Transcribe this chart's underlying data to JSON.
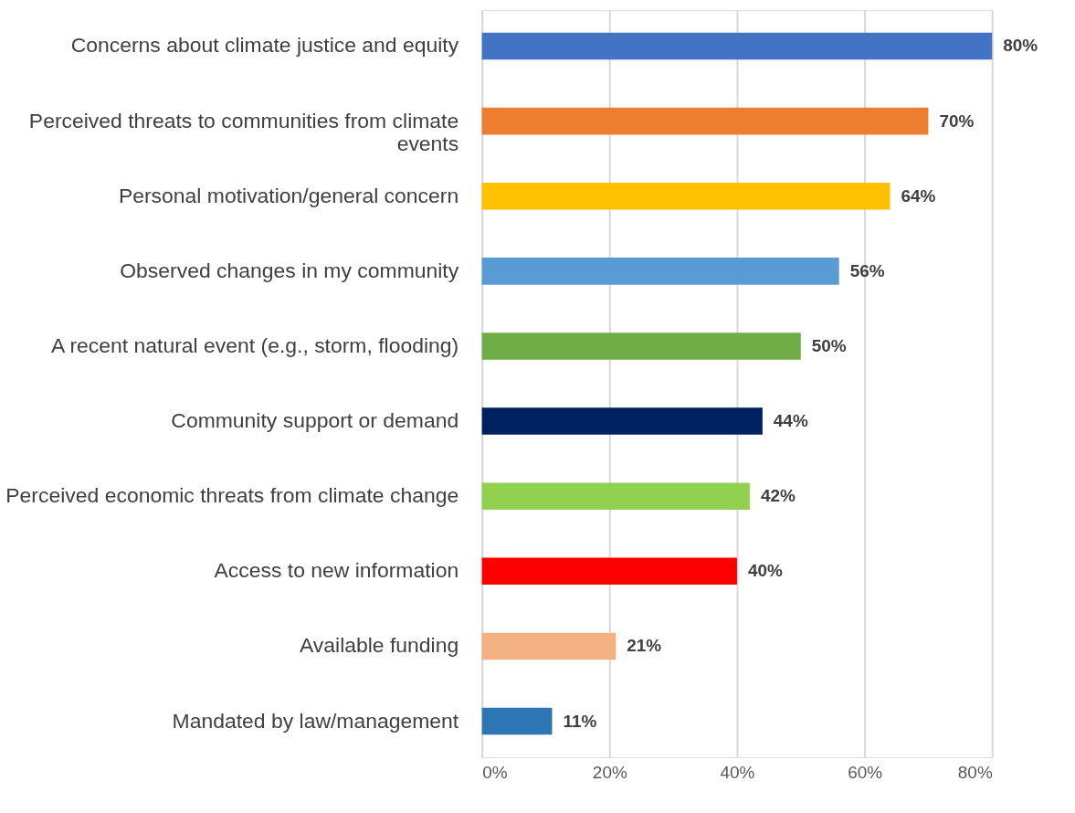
{
  "chart_data": {
    "type": "bar",
    "orientation": "horizontal",
    "categories": [
      "Concerns about climate justice and equity",
      "Perceived threats to communities from climate events",
      "Personal motivation/general concern",
      "Observed changes in my community",
      "A recent natural event (e.g., storm, flooding)",
      "Community support or demand",
      "Perceived economic threats from climate change",
      "Access to new information",
      "Available funding",
      "Mandated by law/management"
    ],
    "values": [
      80,
      70,
      64,
      56,
      50,
      44,
      42,
      40,
      21,
      11
    ],
    "colors": [
      "#4472c4",
      "#ed7d31",
      "#ffc000",
      "#5b9bd5",
      "#70ad47",
      "#002060",
      "#92d050",
      "#ff0000",
      "#f4b183",
      "#2e75b6"
    ],
    "value_labels": [
      "80%",
      "70%",
      "64%",
      "56%",
      "50%",
      "44%",
      "42%",
      "40%",
      "21%",
      "11%"
    ],
    "xlim": [
      0,
      80
    ],
    "xticks": [
      {
        "value": 0,
        "label": "0%"
      },
      {
        "value": 20,
        "label": "20%"
      },
      {
        "value": 40,
        "label": "40%"
      },
      {
        "value": 60,
        "label": "60%"
      },
      {
        "value": 80,
        "label": "80%"
      }
    ],
    "grid": "x",
    "legend": false
  }
}
